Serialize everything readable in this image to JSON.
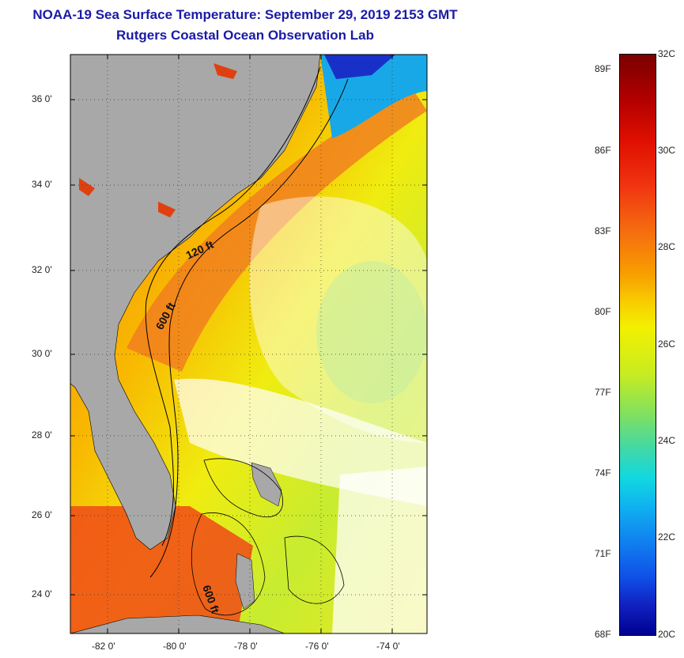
{
  "header": {
    "title": "NOAA-19 Sea Surface Temperature:  September 29, 2019 2153 GMT",
    "subtitle": "Rutgers Coastal Ocean Observation Lab"
  },
  "map": {
    "lat_ticks": [
      "36 0'",
      "34 0'",
      "32 0'",
      "30 0'",
      "28 0'",
      "26 0'",
      "24 0'"
    ],
    "lon_ticks": [
      "-82 0'",
      "-80 0'",
      "-78 0'",
      "-76 0'",
      "-74 0'"
    ],
    "contour_labels": [
      "120 ft",
      "600 ft",
      "600 ft"
    ],
    "colors": {
      "land": "#a8a8a8",
      "ocean_warm": "#f5a000",
      "ocean_hot": "#f06018",
      "ocean_cool": "#c8ec30",
      "cloud": "#ffffff"
    }
  },
  "colorbar": {
    "fahrenheit": [
      "89F",
      "86F",
      "83F",
      "80F",
      "77F",
      "74F",
      "71F",
      "68F"
    ],
    "celsius": [
      "32C",
      "30C",
      "28C",
      "26C",
      "24C",
      "22C",
      "20C"
    ],
    "range_c": [
      20,
      32
    ],
    "range_f": [
      68,
      89.6
    ]
  }
}
